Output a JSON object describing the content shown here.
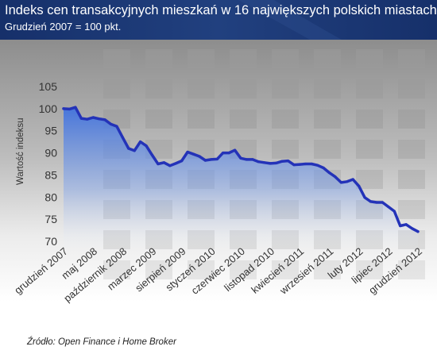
{
  "chart_data": {
    "type": "line",
    "title": "Indeks cen transakcyjnych mieszkań w 16 największych polskich miastach",
    "subtitle": "Grudzień 2007 = 100 pkt.",
    "ylabel": "Wartość indeksu",
    "xlabel": "",
    "ylim": [
      70,
      105
    ],
    "yticks": [
      70,
      75,
      80,
      85,
      90,
      95,
      100,
      105
    ],
    "x_tick_labels": [
      "grudzień 2007",
      "maj 2008",
      "październik 2008",
      "marzec 2009",
      "sierpień 2009",
      "styczeń 2010",
      "czerwiec 2010",
      "listopad 2010",
      "kwiecień 2011",
      "wrzesień 2011",
      "luty 2012",
      "lipiec 2012",
      "grudzień 2012"
    ],
    "grid": false,
    "legend": "none",
    "series": [
      {
        "values": [
          100,
          99.9,
          100.3,
          97.8,
          97.6,
          98,
          97.7,
          97.5,
          96.5,
          96,
          93.5,
          91,
          90.5,
          92.5,
          91.6,
          89.5,
          87.5,
          87.8,
          87.1,
          87.6,
          88.2,
          90.2,
          89.7,
          89.2,
          88.3,
          88.5,
          88.6,
          90,
          90,
          90.6,
          88.8,
          88.5,
          88.5,
          88,
          87.8,
          87.6,
          87.7,
          88.1,
          88.2,
          87.3,
          87.4,
          87.5,
          87.5,
          87.2,
          86.6,
          85.5,
          84.6,
          83.3,
          83.5,
          84,
          82.5,
          79.9,
          79,
          78.8,
          78.8,
          77.8,
          76.8,
          73.5,
          73.8,
          72.9,
          72.2
        ]
      }
    ],
    "source": "Źródło: Open Finance i Home Broker"
  },
  "colors": {
    "line": "#2433b8",
    "header_bg": "#1d3570",
    "axis_text": "#333333"
  }
}
